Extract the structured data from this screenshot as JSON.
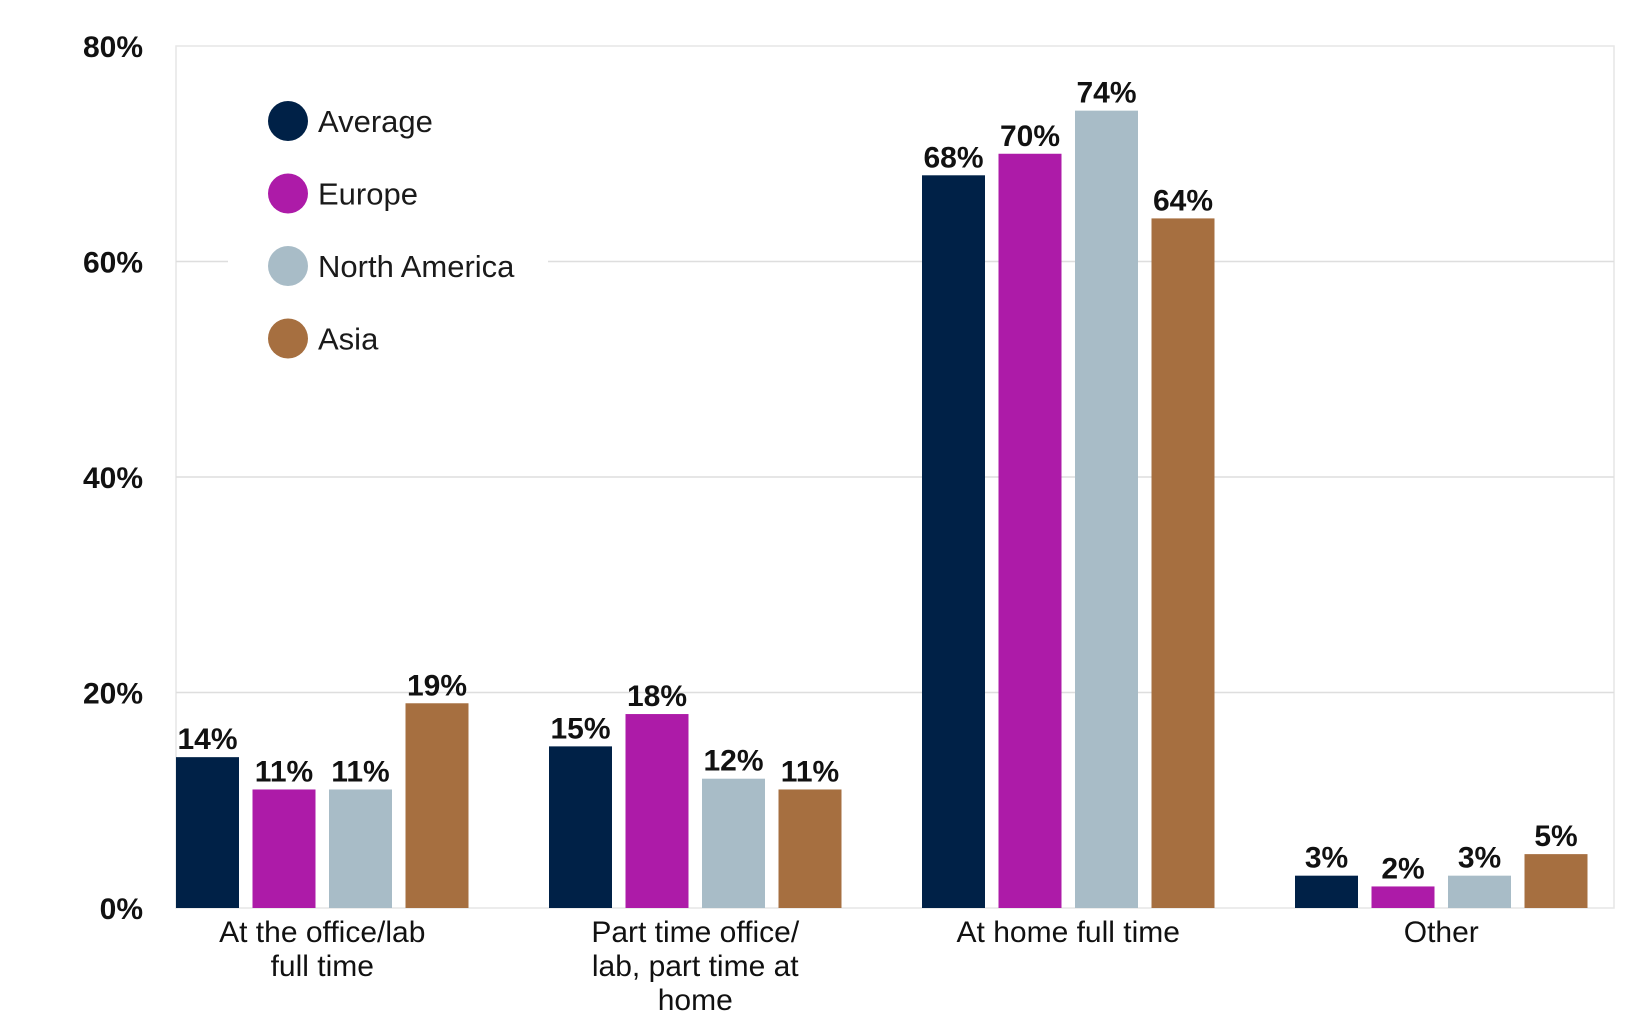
{
  "chart_data": {
    "type": "bar",
    "categories": [
      [
        "At the office/lab",
        "full time"
      ],
      [
        "Part time office/",
        "lab, part time at",
        "home"
      ],
      [
        "At home full time"
      ],
      [
        "Other"
      ]
    ],
    "series": [
      {
        "name": "Average",
        "color": "#002147",
        "values": [
          14,
          15,
          68,
          3
        ]
      },
      {
        "name": "Europe",
        "color": "#ad1ba8",
        "values": [
          11,
          18,
          70,
          2
        ]
      },
      {
        "name": "North America",
        "color": "#a8bcc7",
        "values": [
          11,
          12,
          74,
          3
        ]
      },
      {
        "name": "Asia",
        "color": "#a66f40",
        "values": [
          19,
          11,
          64,
          5
        ]
      }
    ],
    "value_suffix": "%",
    "ylim": [
      0,
      80
    ],
    "yticks": [
      0,
      20,
      40,
      60,
      80
    ],
    "ytick_labels": [
      "0%",
      "20%",
      "40%",
      "60%",
      "80%"
    ],
    "grid": true,
    "legend_position": "top-left"
  }
}
